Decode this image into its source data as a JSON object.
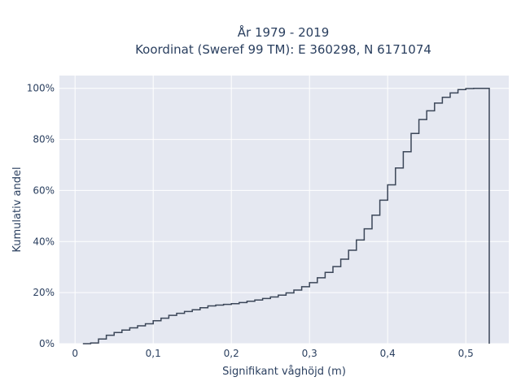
{
  "chart_data": {
    "type": "line",
    "subtype": "step-cdf",
    "title_line1": "År 1979 - 2019",
    "title_line2": "Koordinat (Sweref 99 TM): E 360298, N 6171074",
    "xlabel": "Signifikant våghöjd (m)",
    "ylabel": "Kumulativ andel",
    "xlim": [
      -0.02,
      0.555
    ],
    "ylim": [
      0,
      1.05
    ],
    "x_ticks": [
      {
        "value": 0,
        "label": "0"
      },
      {
        "value": 0.1,
        "label": "0,1"
      },
      {
        "value": 0.2,
        "label": "0,2"
      },
      {
        "value": 0.3,
        "label": "0,3"
      },
      {
        "value": 0.4,
        "label": "0,4"
      },
      {
        "value": 0.5,
        "label": "0,5"
      }
    ],
    "y_ticks": [
      {
        "value": 0,
        "label": "0%"
      },
      {
        "value": 0.2,
        "label": "20%"
      },
      {
        "value": 0.4,
        "label": "40%"
      },
      {
        "value": 0.6,
        "label": "60%"
      },
      {
        "value": 0.8,
        "label": "80%"
      },
      {
        "value": 1.0,
        "label": "100%"
      }
    ],
    "grid": true,
    "colors": {
      "line": "#3b4658",
      "plot_bg": "#e5e8f1",
      "grid": "#ffffff"
    },
    "series": [
      {
        "x": [
          0.01,
          0.02,
          0.03,
          0.04,
          0.05,
          0.06,
          0.07,
          0.08,
          0.09,
          0.1,
          0.11,
          0.12,
          0.13,
          0.14,
          0.15,
          0.16,
          0.17,
          0.18,
          0.19,
          0.2,
          0.21,
          0.22,
          0.23,
          0.24,
          0.25,
          0.26,
          0.27,
          0.28,
          0.29,
          0.3,
          0.31,
          0.32,
          0.33,
          0.34,
          0.35,
          0.36,
          0.37,
          0.38,
          0.39,
          0.4,
          0.41,
          0.42,
          0.43,
          0.44,
          0.45,
          0.46,
          0.47,
          0.48,
          0.49,
          0.5,
          0.51,
          0.52,
          0.53
        ],
        "y": [
          0.0,
          0.003,
          0.018,
          0.033,
          0.044,
          0.053,
          0.062,
          0.07,
          0.078,
          0.09,
          0.1,
          0.111,
          0.119,
          0.126,
          0.133,
          0.141,
          0.148,
          0.151,
          0.154,
          0.157,
          0.161,
          0.166,
          0.171,
          0.177,
          0.183,
          0.19,
          0.199,
          0.21,
          0.223,
          0.239,
          0.258,
          0.279,
          0.302,
          0.331,
          0.366,
          0.406,
          0.45,
          0.503,
          0.562,
          0.622,
          0.688,
          0.752,
          0.823,
          0.878,
          0.912,
          0.942,
          0.965,
          0.982,
          0.995,
          0.999,
          1.0,
          1.0,
          0.0
        ]
      }
    ]
  }
}
